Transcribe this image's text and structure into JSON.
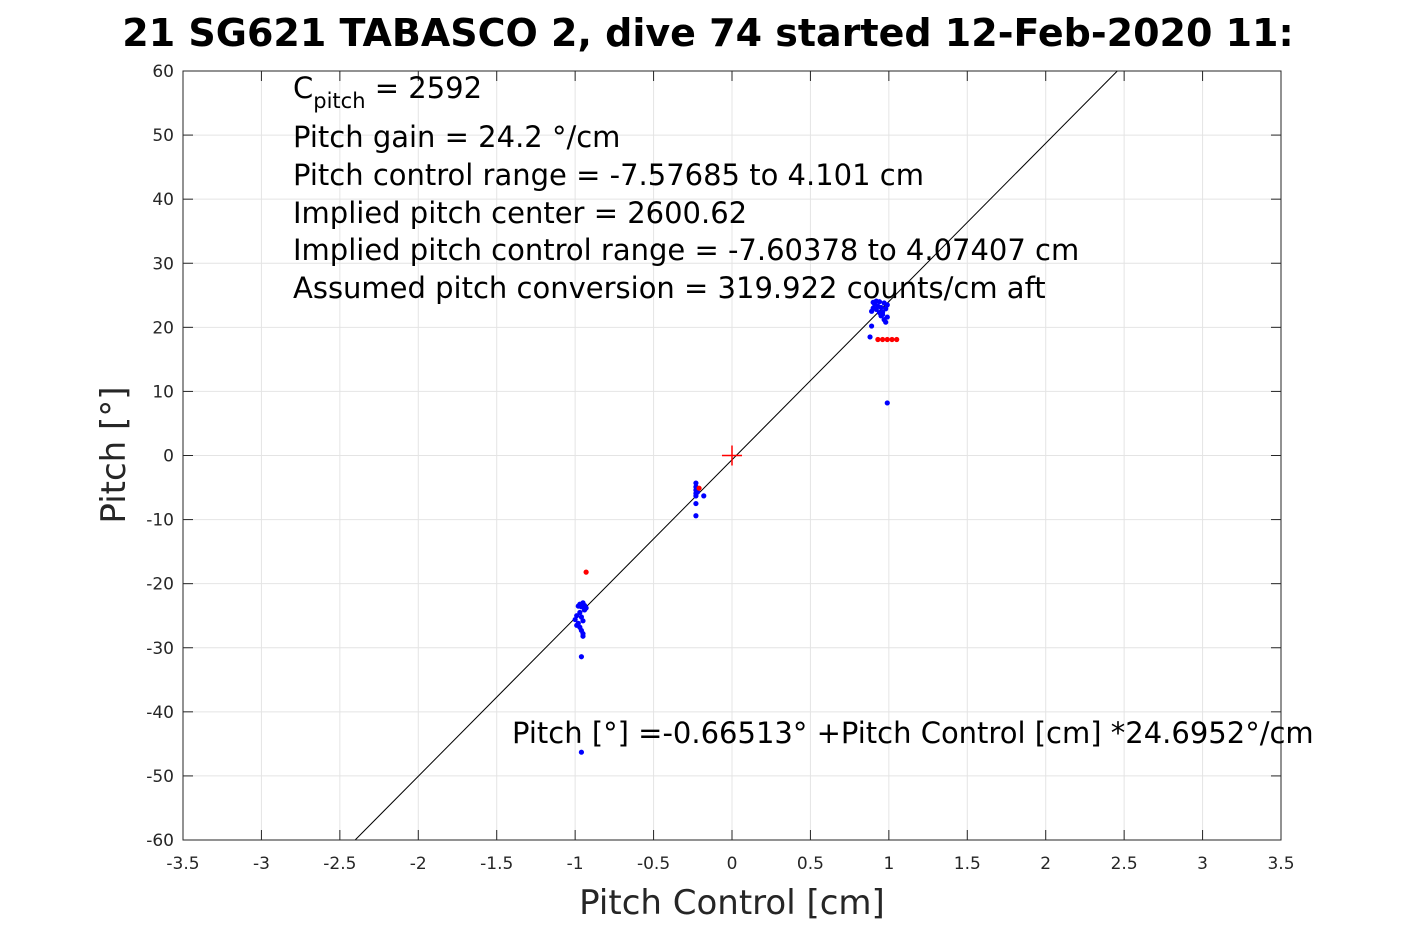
{
  "chart_data": {
    "type": "scatter",
    "title": "21 SG621 TABASCO 2, dive 74 started 12-Feb-2020 11:",
    "xlabel": "Pitch Control [cm]",
    "ylabel": "Pitch [°]",
    "xlim": [
      -3.5,
      3.5
    ],
    "ylim": [
      -60,
      60
    ],
    "xticks": [
      -3.5,
      -3,
      -2.5,
      -2,
      -1.5,
      -1,
      -0.5,
      0,
      0.5,
      1,
      1.5,
      2,
      2.5,
      3,
      3.5
    ],
    "yticks": [
      -60,
      -50,
      -40,
      -30,
      -20,
      -10,
      0,
      10,
      20,
      30,
      40,
      50,
      60
    ],
    "grid": true,
    "annotations": {
      "cpitch_base": "C",
      "cpitch_sub": "pitch",
      "cpitch_value": " = 2592",
      "pitch_gain": "Pitch gain = 24.2 °/cm",
      "control_range": "Pitch control range = -7.57685 to 4.101 cm",
      "implied_center": "Implied pitch center = 2600.62",
      "implied_range": "Implied pitch control range = -7.60378 to 4.07407 cm",
      "conversion": "Assumed pitch conversion = 319.922 counts/cm aft",
      "fit_equation": "Pitch [°] =-0.66513° +Pitch Control [cm] *24.6952°/cm"
    },
    "fit_line": {
      "intercept": -0.66513,
      "slope": 24.6952,
      "color": "#000000"
    },
    "center_marker": {
      "x": 0,
      "y": 0,
      "color": "#ff0000"
    },
    "series": [
      {
        "color": "#0000ff",
        "points": [
          [
            -0.98,
            -23.5
          ],
          [
            -0.97,
            -23.2
          ],
          [
            -0.96,
            -23.6
          ],
          [
            -0.95,
            -23.0
          ],
          [
            -0.94,
            -23.4
          ],
          [
            -0.93,
            -23.8
          ],
          [
            -0.97,
            -24.5
          ],
          [
            -0.96,
            -25.2
          ],
          [
            -0.95,
            -25.8
          ],
          [
            -0.99,
            -25.0
          ],
          [
            -1.0,
            -25.6
          ],
          [
            -0.98,
            -26.2
          ],
          [
            -0.97,
            -26.8
          ],
          [
            -0.96,
            -27.3
          ],
          [
            -0.95,
            -27.8
          ],
          [
            -0.95,
            -28.2
          ],
          [
            -0.99,
            -26.5
          ],
          [
            -0.94,
            -24.1
          ],
          [
            -0.96,
            -31.4
          ],
          [
            -0.96,
            -46.3
          ],
          [
            -0.23,
            -4.3
          ],
          [
            -0.23,
            -4.9
          ],
          [
            -0.23,
            -5.4
          ],
          [
            -0.23,
            -5.9
          ],
          [
            -0.23,
            -6.3
          ],
          [
            -0.22,
            -5.7
          ],
          [
            -0.23,
            -7.5
          ],
          [
            -0.23,
            -9.4
          ],
          [
            -0.18,
            -6.3
          ],
          [
            0.89,
            22.5
          ],
          [
            0.9,
            23.0
          ],
          [
            0.91,
            23.6
          ],
          [
            0.92,
            22.8
          ],
          [
            0.93,
            23.3
          ],
          [
            0.94,
            24.0
          ],
          [
            0.95,
            23.1
          ],
          [
            0.96,
            22.4
          ],
          [
            0.97,
            23.8
          ],
          [
            0.98,
            22.9
          ],
          [
            0.99,
            23.5
          ],
          [
            0.95,
            21.8
          ],
          [
            0.97,
            21.2
          ],
          [
            0.98,
            20.8
          ],
          [
            0.96,
            22.0
          ],
          [
            0.99,
            21.6
          ],
          [
            0.89,
            20.2
          ],
          [
            0.9,
            23.9
          ],
          [
            0.92,
            24.1
          ],
          [
            0.94,
            22.3
          ],
          [
            0.99,
            8.2
          ],
          [
            0.88,
            18.5
          ]
        ]
      },
      {
        "color": "#ff0000",
        "points": [
          [
            -0.93,
            -18.2
          ],
          [
            -0.21,
            -5.1
          ],
          [
            0.93,
            18.1
          ],
          [
            0.96,
            18.1
          ],
          [
            0.99,
            18.1
          ],
          [
            1.02,
            18.1
          ],
          [
            1.05,
            18.1
          ]
        ]
      }
    ]
  }
}
